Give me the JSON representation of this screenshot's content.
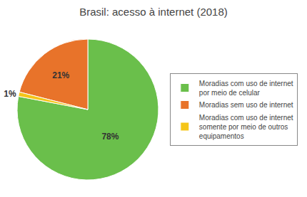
{
  "chart_data": {
    "type": "pie",
    "title": "Brasil: acesso à internet (2018)",
    "categories": [
      "Moradias com uso de internet\npor meio de celular",
      "Moradias sem uso de internet",
      "Moradias com uso de internet\nsomente por meio de outros\nequipamentos"
    ],
    "values": [
      78,
      21,
      1
    ],
    "value_labels": [
      "78%",
      "21%",
      "1%"
    ],
    "colors": [
      "#6abf4b",
      "#e8732a",
      "#f5c518"
    ],
    "data_labels": true,
    "legend": "right"
  }
}
